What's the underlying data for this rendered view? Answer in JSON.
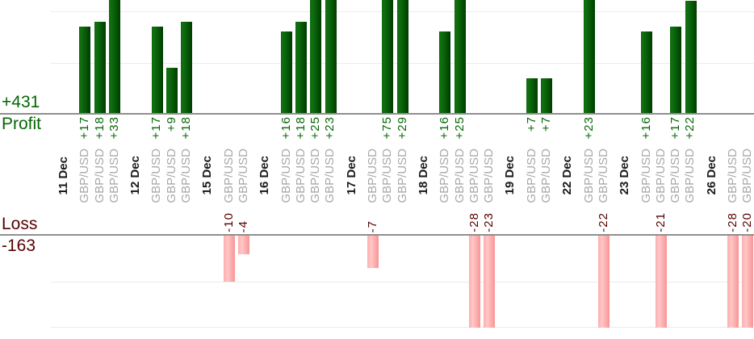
{
  "left_panel": {
    "profit_total": "+431",
    "profit_label": "Profit",
    "loss_label": "Loss",
    "loss_total": "-163"
  },
  "chart_data": {
    "type": "bar",
    "title": "",
    "orientation": "vertical-grouped-by-date",
    "units": "points",
    "groups": [
      {
        "date": "11 Dec",
        "trades": [
          {
            "symbol": "GBP/USD",
            "value": 17
          },
          {
            "symbol": "GBP/USD",
            "value": 18
          },
          {
            "symbol": "GBP/USD",
            "value": 33
          }
        ]
      },
      {
        "date": "12 Dec",
        "trades": [
          {
            "symbol": "GBP/USD",
            "value": 17
          },
          {
            "symbol": "GBP/USD",
            "value": 9
          },
          {
            "symbol": "GBP/USD",
            "value": 18
          }
        ]
      },
      {
        "date": "15 Dec",
        "trades": [
          {
            "symbol": "GBP/USD",
            "value": -10
          },
          {
            "symbol": "GBP/USD",
            "value": -4
          }
        ]
      },
      {
        "date": "16 Dec",
        "trades": [
          {
            "symbol": "GBP/USD",
            "value": 16
          },
          {
            "symbol": "GBP/USD",
            "value": 18
          },
          {
            "symbol": "GBP/USD",
            "value": 25
          },
          {
            "symbol": "GBP/USD",
            "value": 23
          }
        ]
      },
      {
        "date": "17 Dec",
        "trades": [
          {
            "symbol": "GBP/USD",
            "value": -7
          },
          {
            "symbol": "GBP/USD",
            "value": 75
          },
          {
            "symbol": "GBP/USD",
            "value": 29
          }
        ]
      },
      {
        "date": "18 Dec",
        "trades": [
          {
            "symbol": "GBP/USD",
            "value": 16
          },
          {
            "symbol": "GBP/USD",
            "value": 25
          },
          {
            "symbol": "GBP/USD",
            "value": -28
          },
          {
            "symbol": "GBP/USD",
            "value": -23
          }
        ]
      },
      {
        "date": "19 Dec",
        "trades": [
          {
            "symbol": "GBP/USD",
            "value": 7
          },
          {
            "symbol": "GBP/USD",
            "value": 7
          }
        ]
      },
      {
        "date": "22 Dec",
        "trades": [
          {
            "symbol": "GBP/USD",
            "value": 23
          },
          {
            "symbol": "GBP/USD",
            "value": -22
          }
        ]
      },
      {
        "date": "23 Dec",
        "trades": [
          {
            "symbol": "GBP/USD",
            "value": 16
          },
          {
            "symbol": "GBP/USD",
            "value": -21
          },
          {
            "symbol": "GBP/USD",
            "value": 17
          },
          {
            "symbol": "GBP/USD",
            "value": 22
          }
        ]
      },
      {
        "date": "26 Dec",
        "trades": [
          {
            "symbol": "GBP/USD",
            "value": -28
          },
          {
            "symbol": "GBP/USD",
            "value": -20
          }
        ]
      }
    ],
    "profit_axis": {
      "total": 431,
      "gridline_values": [
        10,
        20
      ],
      "visible_range": [
        0,
        22
      ]
    },
    "loss_axis": {
      "total": -163,
      "gridline_values": [
        -10,
        -20
      ],
      "visible_range": [
        0,
        -20
      ]
    },
    "legend_position": "none",
    "grid": true,
    "colors": {
      "profit_text": "#066606",
      "loss_text": "#550000",
      "symbol_text": "#a8a8a8",
      "date_text": "#1a1a1a",
      "profit_bar": "#0a640a",
      "loss_bar": "#ffa5a5",
      "baseline": "#8f8f8f",
      "gridline": "#ebebeb"
    }
  }
}
